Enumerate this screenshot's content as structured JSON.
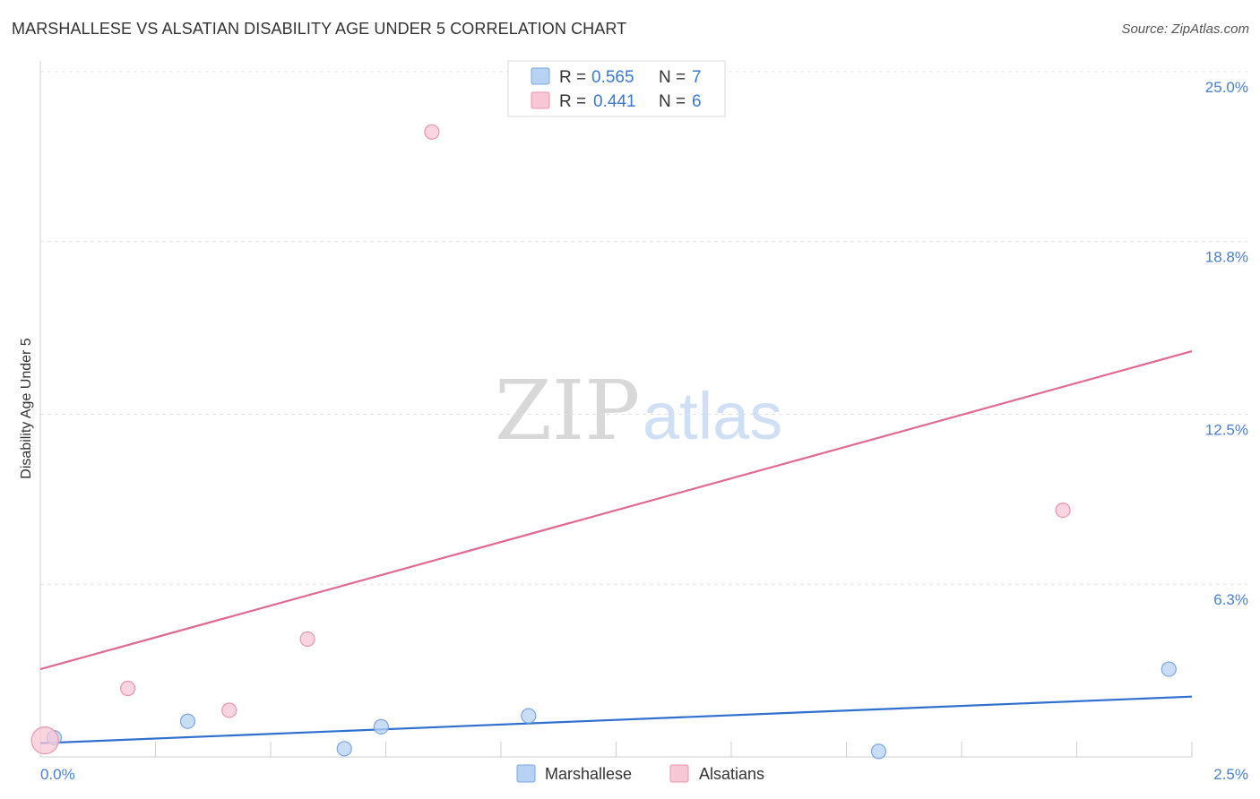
{
  "title": "MARSHALLESE VS ALSATIAN DISABILITY AGE UNDER 5 CORRELATION CHART",
  "source": "Source: ZipAtlas.com",
  "watermark": {
    "zip": "ZIP",
    "atlas": "atlas"
  },
  "colors": {
    "blue_fill": "#b8d2f4",
    "blue_stroke": "#7aa6de",
    "blue_line": "#2f6fcf",
    "pink_fill": "#f8c7d6",
    "pink_stroke": "#e894ae",
    "pink_line": "#e06a93",
    "grid": "#e3e3e3",
    "tick_text": "#4a7fd0"
  },
  "chart_data": {
    "type": "scatter",
    "title": "MARSHALLESE VS ALSATIAN DISABILITY AGE UNDER 5 CORRELATION CHART",
    "xlabel": "",
    "ylabel": "Disability Age Under 5",
    "xlim": [
      0,
      2.5
    ],
    "ylim": [
      0,
      25.0
    ],
    "x_tick_labels": [
      {
        "value": 0,
        "label": "0.0%"
      },
      {
        "value": 2.5,
        "label": "2.5%"
      }
    ],
    "y_tick_labels": [
      {
        "value": 6.3,
        "label": "6.3%"
      },
      {
        "value": 12.5,
        "label": "12.5%"
      },
      {
        "value": 18.8,
        "label": "18.8%"
      },
      {
        "value": 25.0,
        "label": "25.0%"
      }
    ],
    "grid": true,
    "series": [
      {
        "name": "Marshallese",
        "r": "0.565",
        "n": "7",
        "points": [
          {
            "x": 0.03,
            "y": 0.7,
            "size": "small"
          },
          {
            "x": 0.32,
            "y": 1.3,
            "size": "small"
          },
          {
            "x": 0.66,
            "y": 0.3,
            "size": "small"
          },
          {
            "x": 0.74,
            "y": 1.1,
            "size": "small"
          },
          {
            "x": 1.06,
            "y": 1.5,
            "size": "small"
          },
          {
            "x": 1.82,
            "y": 0.2,
            "size": "small"
          },
          {
            "x": 2.45,
            "y": 3.2,
            "size": "small"
          }
        ],
        "trend": {
          "x0": 0,
          "y0": 0.5,
          "x1": 2.5,
          "y1": 2.2
        }
      },
      {
        "name": "Alsatians",
        "r": "0.441",
        "n": "6",
        "points": [
          {
            "x": 0.01,
            "y": 0.6,
            "size": "large"
          },
          {
            "x": 0.19,
            "y": 2.5,
            "size": "small"
          },
          {
            "x": 0.41,
            "y": 1.7,
            "size": "small"
          },
          {
            "x": 0.58,
            "y": 4.3,
            "size": "small"
          },
          {
            "x": 0.85,
            "y": 22.8,
            "size": "small"
          },
          {
            "x": 2.22,
            "y": 9.0,
            "size": "small"
          }
        ],
        "trend": {
          "x0": 0,
          "y0": 3.2,
          "x1": 2.5,
          "y1": 14.8
        }
      }
    ]
  },
  "legend": {
    "r_label": "R =",
    "n_label": "N =",
    "rows": [
      {
        "series": "Marshallese",
        "r": "0.565",
        "n": "7"
      },
      {
        "series": "Alsatians",
        "r": "0.441",
        "n": "6"
      }
    ]
  },
  "bottom_legend": [
    "Marshallese",
    "Alsatians"
  ]
}
